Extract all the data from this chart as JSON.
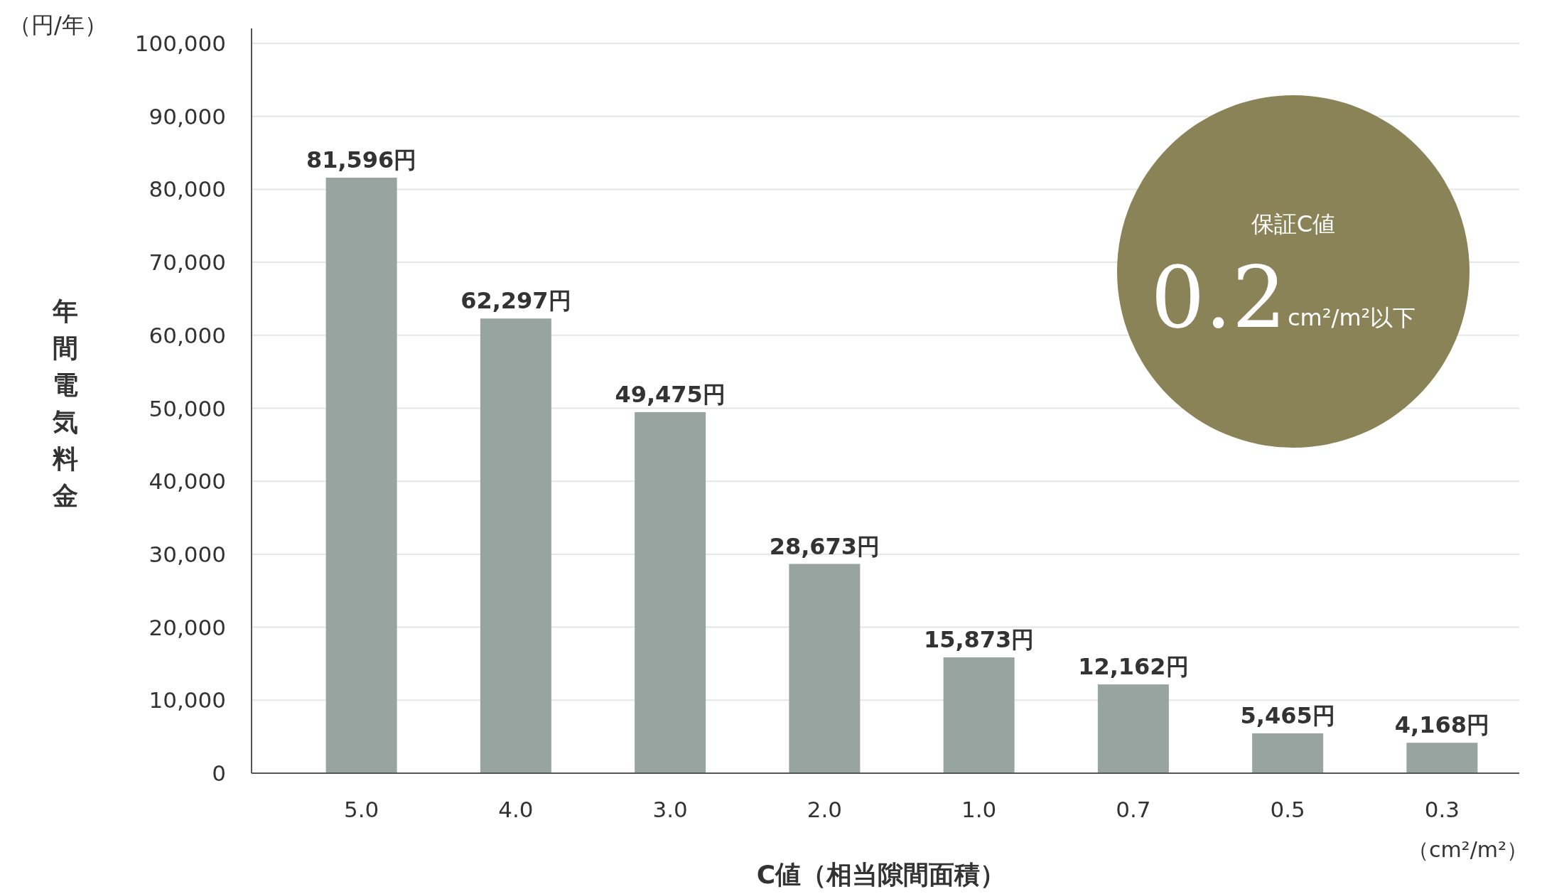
{
  "chart_data": {
    "type": "bar",
    "xlabel": "C値（相当隙間面積）",
    "ylabel": "年間電気料金",
    "categories": [
      "5.0",
      "4.0",
      "3.0",
      "2.0",
      "1.0",
      "0.7",
      "0.5",
      "0.3"
    ],
    "values": [
      81596,
      62297,
      49475,
      28673,
      15873,
      12162,
      5465,
      4168
    ],
    "value_labels": [
      "81,596円",
      "62,297円",
      "49,475円",
      "28,673円",
      "15,873円",
      "12,162円",
      "5,465円",
      "4,168円"
    ],
    "color": "#97a4a0",
    "grid": "y",
    "ylim": [
      0,
      100000
    ],
    "yticks": [
      0,
      {
        "value": 10000,
        "label": "10,000"
      },
      {
        "value": 20000,
        "label": "20,000"
      },
      {
        "value": 30000,
        "label": "30,000"
      },
      {
        "value": 40000,
        "label": "40,000"
      },
      {
        "value": 50000,
        "label": "50,000"
      },
      {
        "value": 60000,
        "label": "60,000"
      },
      {
        "value": 70000,
        "label": "70,000"
      },
      {
        "value": 80000,
        "label": "80,000"
      },
      {
        "value": 90000,
        "label": "90,000"
      },
      {
        "value": 100000,
        "label": "100,000"
      }
    ],
    "annotations": [
      "（円/年）",
      "（cm²/m²）",
      "保証C値",
      "0.2",
      "cm²/m²以下"
    ]
  }
}
